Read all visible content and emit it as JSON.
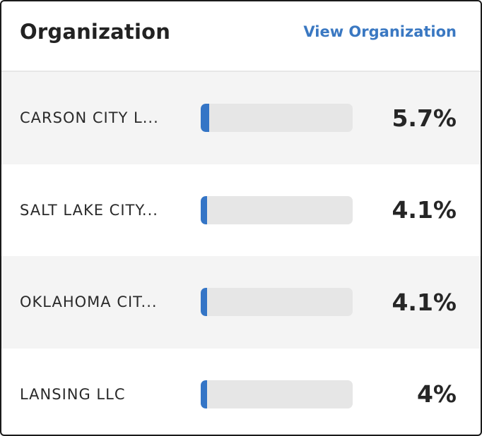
{
  "header": {
    "title": "Organization",
    "link_label": "View Organization"
  },
  "colors": {
    "accent": "#3475c6",
    "link": "#3a78c2",
    "track": "#e6e6e6"
  },
  "rows": [
    {
      "label": "CARSON CITY L...",
      "value": "5.7%",
      "fraction": 0.057
    },
    {
      "label": "SALT LAKE CITY...",
      "value": "4.1%",
      "fraction": 0.041
    },
    {
      "label": "OKLAHOMA CIT...",
      "value": "4.1%",
      "fraction": 0.041
    },
    {
      "label": "LANSING LLC",
      "value": "4%",
      "fraction": 0.04
    }
  ]
}
